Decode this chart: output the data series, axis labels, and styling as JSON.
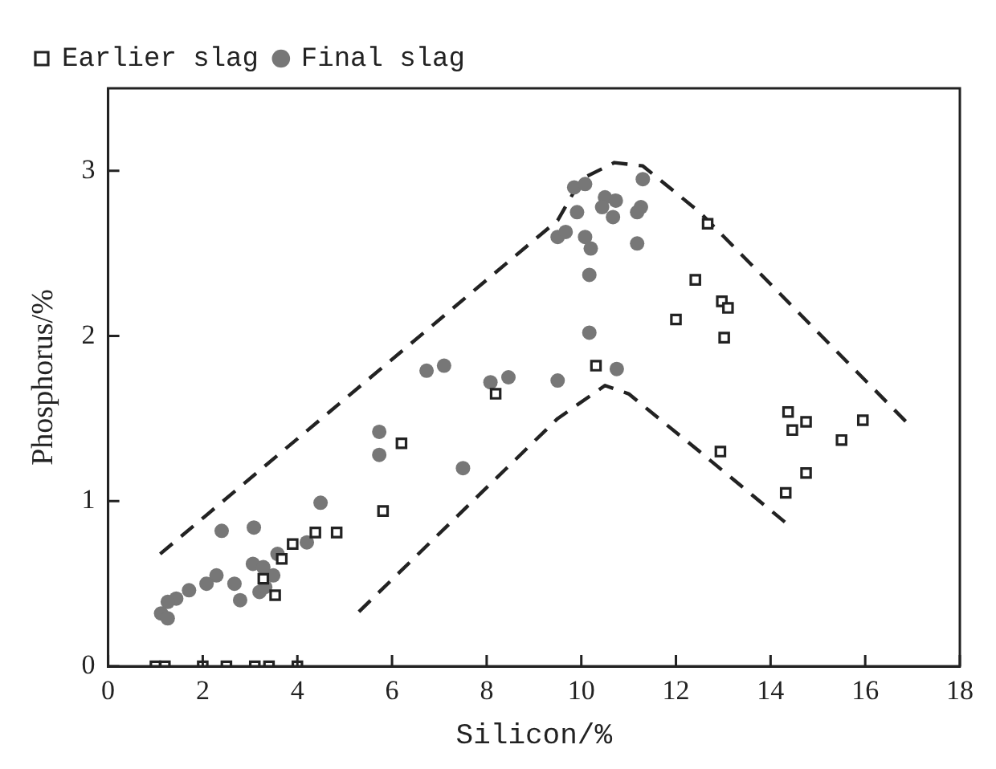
{
  "chart_data": {
    "type": "scatter",
    "xlabel": "Silicon/%",
    "ylabel": "Phosphorus/%",
    "xlim": [
      0,
      18
    ],
    "xticks": [
      0,
      2,
      4,
      6,
      8,
      10,
      12,
      14,
      16,
      18
    ],
    "ylim": [
      0,
      3.5
    ],
    "yticks": [
      0,
      1,
      2,
      3
    ],
    "grid": false,
    "legend": "top left",
    "series": [
      {
        "name": "Earlier slag",
        "color": "#222222",
        "marker": "square",
        "x": [
          1.0,
          1.2,
          2.0,
          2.5,
          3.1,
          3.4,
          4.0,
          3.9,
          3.67,
          4.38,
          4.83,
          3.28,
          3.53,
          5.81,
          6.2,
          8.19,
          10.31,
          12.67,
          12.41,
          12.97,
          13.1,
          12.0,
          13.02,
          14.37,
          14.75,
          14.46,
          15.95,
          15.5,
          14.75,
          14.32,
          12.94
        ],
        "values": [
          0,
          0,
          0,
          0,
          0,
          0,
          0,
          0.74,
          0.65,
          0.81,
          0.81,
          0.53,
          0.43,
          0.94,
          1.35,
          1.65,
          1.82,
          2.68,
          2.34,
          2.21,
          2.17,
          2.1,
          1.99,
          1.54,
          1.48,
          1.43,
          1.49,
          1.37,
          1.17,
          1.05,
          1.3
        ]
      },
      {
        "name": "Final slag",
        "color": "#777777",
        "marker": "circle",
        "x": [
          4.49,
          3.08,
          2.4,
          3.58,
          4.2,
          3.06,
          3.28,
          3.49,
          2.67,
          2.29,
          2.08,
          1.71,
          1.44,
          1.26,
          1.12,
          1.26,
          2.79,
          3.2,
          3.32,
          5.73,
          5.73,
          6.73,
          7.1,
          8.08,
          8.46,
          9.5,
          7.5,
          10.75,
          10.17,
          10.17,
          9.85,
          10.08,
          11.3,
          10.5,
          10.73,
          10.44,
          10.67,
          11.26,
          11.18,
          9.91,
          9.5,
          9.67,
          10.08,
          10.2,
          11.18
        ],
        "values": [
          0.99,
          0.84,
          0.82,
          0.68,
          0.75,
          0.62,
          0.6,
          0.55,
          0.5,
          0.55,
          0.5,
          0.46,
          0.41,
          0.39,
          0.32,
          0.29,
          0.4,
          0.45,
          0.48,
          1.42,
          1.28,
          1.79,
          1.82,
          1.72,
          1.75,
          1.73,
          1.2,
          1.8,
          2.37,
          2.02,
          2.9,
          2.92,
          2.95,
          2.84,
          2.82,
          2.78,
          2.72,
          2.78,
          2.75,
          2.75,
          2.6,
          2.63,
          2.6,
          2.53,
          2.56
        ]
      },
      {
        "type": "line",
        "color": "#222222",
        "line_style": "dashed",
        "marker": "none",
        "x": [
          1.1,
          9.5,
          10.0,
          10.7,
          11.3,
          12.5,
          16.9
        ],
        "values": [
          0.68,
          2.7,
          2.95,
          3.05,
          3.03,
          2.75,
          1.47
        ]
      },
      {
        "type": "line",
        "color": "#222222",
        "line_style": "dashed",
        "marker": "none",
        "x": [
          5.3,
          9.5,
          10.5,
          11.0,
          12.5,
          14.4
        ],
        "values": [
          0.33,
          1.5,
          1.7,
          1.65,
          1.3,
          0.85
        ]
      }
    ]
  }
}
